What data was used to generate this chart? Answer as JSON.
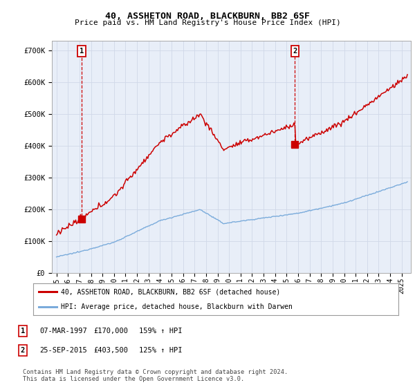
{
  "title": "40, ASSHETON ROAD, BLACKBURN, BB2 6SF",
  "subtitle": "Price paid vs. HM Land Registry's House Price Index (HPI)",
  "ylim": [
    0,
    730000
  ],
  "yticks": [
    0,
    100000,
    200000,
    300000,
    400000,
    500000,
    600000,
    700000
  ],
  "ytick_labels": [
    "£0",
    "£100K",
    "£200K",
    "£300K",
    "£400K",
    "£500K",
    "£600K",
    "£700K"
  ],
  "xlim_start": 1994.6,
  "xlim_end": 2025.8,
  "marker1_x": 1997.18,
  "marker1_y": 170000,
  "marker1_label": "1",
  "marker2_x": 2015.73,
  "marker2_y": 403500,
  "marker2_label": "2",
  "line1_color": "#cc0000",
  "line2_color": "#7aabdb",
  "legend_label1": "40, ASSHETON ROAD, BLACKBURN, BB2 6SF (detached house)",
  "legend_label2": "HPI: Average price, detached house, Blackburn with Darwen",
  "table_rows": [
    [
      "1",
      "07-MAR-1997",
      "£170,000",
      "159% ↑ HPI"
    ],
    [
      "2",
      "25-SEP-2015",
      "£403,500",
      "125% ↑ HPI"
    ]
  ],
  "footer": "Contains HM Land Registry data © Crown copyright and database right 2024.\nThis data is licensed under the Open Government Licence v3.0.",
  "grid_color": "#d0d8e8",
  "bg_color": "#ffffff",
  "plot_bg_color": "#e8eef8"
}
